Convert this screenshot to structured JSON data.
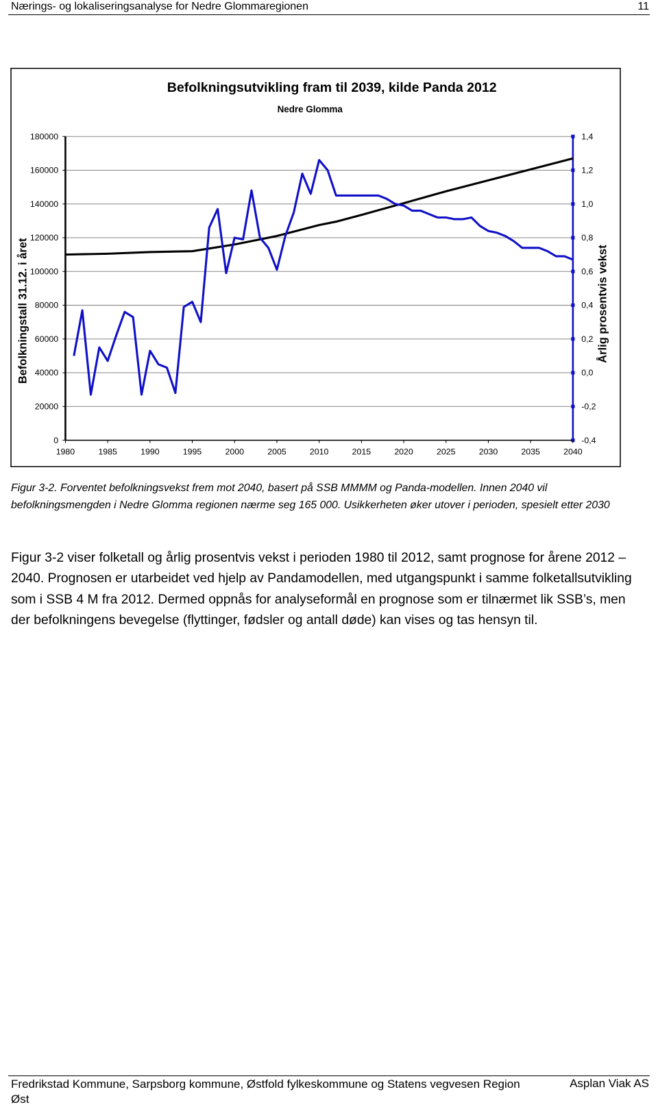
{
  "header": {
    "title": "Nærings- og lokaliseringsanalyse for Nedre Glommaregionen",
    "page": "11"
  },
  "chart_data": {
    "type": "line",
    "title": "Befolkningsutvikling fram til 2039, kilde Panda 2012",
    "subtitle": "Nedre Glomma",
    "y_label": "Befolkningstall 31.12. i året",
    "y2_label": "Årlig prosentvis vekst",
    "xlim": [
      1980,
      2040
    ],
    "xticks": [
      1980,
      1985,
      1990,
      1995,
      2000,
      2005,
      2010,
      2015,
      2020,
      2025,
      2030,
      2035,
      2040
    ],
    "ylim": [
      0,
      180000
    ],
    "yticks": [
      0,
      20000,
      40000,
      60000,
      80000,
      100000,
      120000,
      140000,
      160000,
      180000
    ],
    "y2lim": [
      -0.4,
      1.4
    ],
    "y2ticks": [
      {
        "value": -0.4,
        "label": "-0,4"
      },
      {
        "value": -0.2,
        "label": "-0,2"
      },
      {
        "value": 0,
        "label": "0,0"
      },
      {
        "value": 0.2,
        "label": "0,2"
      },
      {
        "value": 0.4,
        "label": "0,4"
      },
      {
        "value": 0.6,
        "label": "0,6"
      },
      {
        "value": 0.8,
        "label": "0,8"
      },
      {
        "value": 1.0,
        "label": "1,0"
      },
      {
        "value": 1.2,
        "label": "1,2"
      },
      {
        "value": 1.4,
        "label": "1,4"
      }
    ],
    "grid": true,
    "series": [
      {
        "color": "#000000",
        "x": [
          1980,
          1985,
          1990,
          1995,
          2000,
          2005,
          2010,
          2012,
          2015,
          2020,
          2025,
          2030,
          2035,
          2040
        ],
        "values": [
          110000,
          110500,
          111500,
          112000,
          116000,
          121000,
          127500,
          129500,
          133500,
          140500,
          147500,
          154000,
          160500,
          167000
        ]
      },
      {
        "color": "#1010c8",
        "axis": "y2",
        "x": [
          1981,
          1982,
          1983,
          1984,
          1985,
          1986,
          1987,
          1988,
          1989,
          1990,
          1991,
          1992,
          1993,
          1994,
          1995,
          1996,
          1997,
          1998,
          1999,
          2000,
          2001,
          2002,
          2003,
          2004,
          2005,
          2006,
          2007,
          2008,
          2009,
          2010,
          2011,
          2012,
          2013,
          2014,
          2015,
          2016,
          2017,
          2018,
          2019,
          2020,
          2021,
          2022,
          2023,
          2024,
          2025,
          2026,
          2027,
          2028,
          2029,
          2030,
          2031,
          2032,
          2033,
          2034,
          2035,
          2036,
          2037,
          2038,
          2039,
          2040
        ],
        "values": [
          0.1,
          0.37,
          -0.13,
          0.15,
          0.07,
          0.22,
          0.36,
          0.33,
          -0.13,
          0.13,
          0.05,
          0.03,
          -0.12,
          0.39,
          0.42,
          0.3,
          0.86,
          0.97,
          0.59,
          0.8,
          0.79,
          1.08,
          0.8,
          0.74,
          0.61,
          0.81,
          0.95,
          1.18,
          1.06,
          1.26,
          1.2,
          1.05,
          1.05,
          1.05,
          1.05,
          1.05,
          1.05,
          1.03,
          1.0,
          0.99,
          0.96,
          0.96,
          0.94,
          0.92,
          0.92,
          0.91,
          0.91,
          0.92,
          0.87,
          0.84,
          0.83,
          0.81,
          0.78,
          0.74,
          0.74,
          0.74,
          0.72,
          0.69,
          0.69,
          0.67
        ]
      }
    ]
  },
  "caption": "Figur 3-2. Forventet befolkningsvekst frem mot 2040, basert på SSB MMMM og Panda-modellen. Innen 2040 vil befolkningsmengden i Nedre Glomma regionen nærme seg 165 000. Usikkerheten øker utover i perioden, spesielt etter 2030",
  "paragraph": "Figur 3-2 viser folketall og årlig prosentvis vekst i perioden 1980 til 2012, samt prognose for årene 2012 – 2040. Prognosen er utarbeidet ved hjelp av Pandamodellen, med utgangspunkt i samme folketallsutvikling som i SSB 4 M fra 2012. Dermed oppnås for analyseformål en prognose som er tilnærmet lik SSB’s, men der befolkningens bevegelse (flyttinger, fødsler og antall døde) kan vises og tas hensyn til.",
  "footer": {
    "left": "Fredrikstad Kommune, Sarpsborg kommune, Østfold fylkeskommune og Statens vegvesen Region Øst",
    "right": "Asplan Viak AS"
  }
}
